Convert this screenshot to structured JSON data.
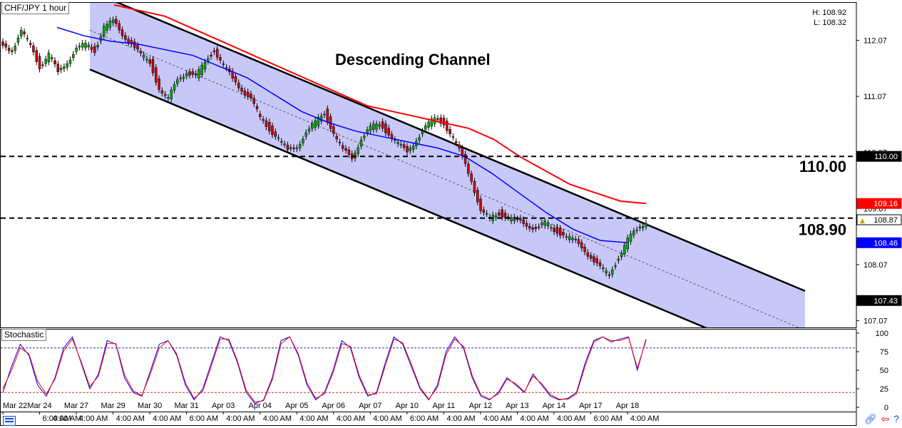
{
  "window": {
    "title": "CHF/JPY 1 hour",
    "high_label": "H: 108.92",
    "low_label": "L: 108.32",
    "annotation": "Descending Channel",
    "indicator_title": "Stochastic"
  },
  "chart_data": [
    {
      "type": "candlestick",
      "title": "CHF/JPY 1 hour",
      "annotation": "Descending Channel",
      "y_ticks": [
        112.07,
        111.07,
        110.07,
        109.07,
        108.07,
        107.07
      ],
      "ylim": [
        106.95,
        112.75
      ],
      "x_ticks": [
        "Mar 22",
        "Mar 24",
        "Mar 27",
        "Mar 29",
        "Mar 30",
        "Mar 31",
        "Apr 03",
        "Apr 04",
        "Apr 05",
        "Apr 06",
        "Apr 07",
        "Apr 10",
        "Apr 11",
        "Apr 12",
        "Apr 13",
        "Apr 14",
        "Apr 17",
        "Apr 18"
      ],
      "x_tick_sublabels": [
        "4:00 AM",
        "6:00 AM",
        "4:00 AM",
        "4:00 AM",
        "4:00 AM",
        "6:00 AM",
        "4:00 AM",
        "4:00 AM",
        "4:00 AM",
        "4:00 AM",
        "4:00 AM",
        "6:00 AM",
        "4:00 AM",
        "4:00 AM",
        "4:00 AM",
        "4:00 AM",
        "6:00 AM",
        "4:00 AM"
      ],
      "horizontal_levels": [
        {
          "value": 110.0,
          "label": "110.00",
          "style": "dashed"
        },
        {
          "value": 108.9,
          "label": "108.90",
          "style": "dashed"
        }
      ],
      "price_markers": [
        {
          "label": "110.00",
          "value": 110.0,
          "color": "#000000"
        },
        {
          "label": "109.16",
          "value": 109.16,
          "color": "#ff0000"
        },
        {
          "label": "108.87",
          "value": 108.87,
          "color": "#ffffff"
        },
        {
          "label": "108.46",
          "value": 108.46,
          "color": "#0000ff"
        },
        {
          "label": "107.43",
          "value": 107.43,
          "color": "#000000"
        }
      ],
      "channel": {
        "upper": [
          [
            0.105,
            112.95
          ],
          [
            0.94,
            107.6
          ]
        ],
        "lower": [
          [
            0.105,
            111.55
          ],
          [
            0.94,
            106.2
          ]
        ],
        "mid_dashed": true,
        "fill": "#c8c8f8"
      },
      "close_series": [
        112.0,
        111.9,
        112.2,
        112.0,
        111.6,
        111.8,
        111.5,
        111.7,
        111.9,
        112.0,
        111.9,
        112.3,
        112.4,
        112.2,
        112.0,
        111.8,
        111.7,
        111.2,
        111.0,
        111.4,
        111.5,
        111.4,
        111.7,
        111.9,
        111.6,
        111.4,
        111.2,
        111.0,
        110.7,
        110.5,
        110.3,
        110.1,
        110.2,
        110.4,
        110.6,
        110.8,
        110.4,
        110.1,
        110.0,
        110.3,
        110.5,
        110.6,
        110.4,
        110.2,
        110.1,
        110.3,
        110.5,
        110.7,
        110.6,
        110.3,
        110.0,
        109.6,
        109.0,
        108.9,
        109.0,
        108.9,
        108.85,
        108.8,
        108.7,
        108.8,
        108.7,
        108.6,
        108.5,
        108.4,
        108.2,
        108.0,
        107.9,
        108.2,
        108.5,
        108.7,
        108.85
      ],
      "red_ma": [
        112.7,
        112.6,
        112.5,
        112.3,
        112.1,
        111.9,
        111.7,
        111.5,
        111.3,
        111.1,
        110.9,
        110.8,
        110.7,
        110.6,
        110.5,
        110.3,
        110.0,
        109.75,
        109.5,
        109.35,
        109.2,
        109.16
      ],
      "blue_ma": [
        112.3,
        112.15,
        112.05,
        112.0,
        111.9,
        111.8,
        111.6,
        111.4,
        111.1,
        110.8,
        110.6,
        110.45,
        110.35,
        110.25,
        110.15,
        110.0,
        109.7,
        109.35,
        109.0,
        108.7,
        108.5,
        108.46
      ],
      "colors": {
        "up": "#00aa00",
        "down": "#cc0000",
        "red_ma": "#ff0000",
        "blue_ma": "#0000ff"
      }
    },
    {
      "type": "line",
      "title": "Stochastic",
      "y_ticks": [
        100,
        75,
        50,
        25,
        0
      ],
      "ylim": [
        0,
        100
      ],
      "levels": [
        {
          "value": 80,
          "color": "#3030a0"
        },
        {
          "value": 20,
          "color": "#cc3030"
        }
      ],
      "series": [
        {
          "color": "#0000ff",
          "values": [
            20,
            55,
            85,
            70,
            30,
            15,
            40,
            80,
            95,
            60,
            25,
            45,
            90,
            85,
            40,
            20,
            15,
            50,
            85,
            90,
            70,
            30,
            10,
            25,
            60,
            95,
            90,
            60,
            20,
            5,
            10,
            40,
            90,
            95,
            70,
            30,
            10,
            20,
            50,
            90,
            80,
            40,
            15,
            20,
            60,
            95,
            85,
            55,
            25,
            10,
            30,
            75,
            95,
            80,
            40,
            15,
            10,
            20,
            40,
            30,
            20,
            45,
            30,
            15,
            10,
            12,
            20,
            60,
            90,
            95,
            88,
            92,
            95,
            50,
            92
          ]
        },
        {
          "color": "#ff0000",
          "values": [
            25,
            50,
            80,
            72,
            35,
            18,
            38,
            76,
            92,
            62,
            28,
            42,
            86,
            86,
            44,
            22,
            16,
            46,
            80,
            90,
            72,
            33,
            12,
            22,
            56,
            92,
            92,
            62,
            23,
            7,
            9,
            37,
            86,
            95,
            72,
            33,
            12,
            18,
            47,
            86,
            82,
            43,
            17,
            18,
            56,
            92,
            87,
            58,
            27,
            11,
            27,
            71,
            92,
            82,
            43,
            17,
            11,
            18,
            38,
            32,
            21,
            42,
            32,
            17,
            11,
            11,
            18,
            56,
            88,
            95,
            90,
            90,
            94,
            53,
            90
          ]
        }
      ]
    }
  ]
}
